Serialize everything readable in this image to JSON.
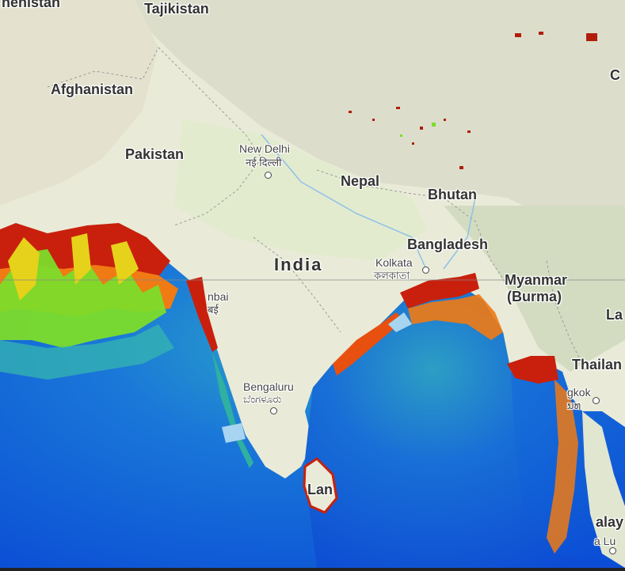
{
  "map": {
    "type": "chlorophyll concentration overlay on terrain basemap",
    "colors": {
      "ocean_deep": "#0a4fd8",
      "ocean_mid": "#1f7fd6",
      "ocean_teal": "#2fb0c0",
      "bloom_green": "#7cdc2a",
      "bloom_yellow": "#e6d21a",
      "bloom_orange": "#f07810",
      "bloom_red": "#c81a0a",
      "land": "#e8ead7",
      "mountains": "#d6d8c4"
    },
    "labels": {
      "kyrgyz_partial": "nenistan",
      "tajikistan": "Tajikistan",
      "afghanistan": "Afghanistan",
      "pakistan": "Pakistan",
      "new_delhi": "New Delhi",
      "new_delhi_native": "नई दिल्ली",
      "nepal": "Nepal",
      "bhutan": "Bhutan",
      "india": "India",
      "bangladesh": "Bangladesh",
      "kolkata": "Kolkata",
      "kolkata_native": "কলকাতা",
      "myanmar": "Myanmar",
      "burma": "(Burma)",
      "thailand": "Thailan",
      "laos_partial": "La",
      "china_partial": "C",
      "mumbai": "nbai",
      "mumbai_native": "बई",
      "bengaluru": "Bengaluru",
      "bengaluru_native": "ಬೆಂಗಳೂರು",
      "bangkok": "gkok",
      "bangkok_native": "ນທ",
      "sri_lanka_partial": "Lan",
      "malaysia_partial": "alay",
      "kuala_lumpur_partial": "a Lu"
    }
  }
}
